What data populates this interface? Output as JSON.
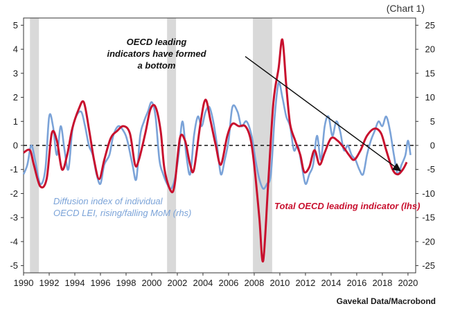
{
  "tag": "(Chart 1)",
  "source": "Gavekal Data/Macrobond",
  "annotations": {
    "bottom": "OECD leading\nindicators have formed\na bottom",
    "diffusion": "Diffusion index of individual\nOECD LEI, rising/falling MoM (rhs)",
    "total": "Total OECD leading indicator (lhs)"
  },
  "colors": {
    "total_line": "#c8102e",
    "diffusion_line": "#7ba3d8",
    "recession_band": "#d9d9d9",
    "arrow": "#111111"
  },
  "chart_data": {
    "type": "line",
    "title": "",
    "xlabel": "",
    "ylabel": "",
    "xlim": [
      1990,
      2020.6
    ],
    "ylim_left": [
      -5.3,
      5.3
    ],
    "ylim_right": [
      -26.5,
      26.5
    ],
    "x_ticks": [
      "1990",
      "1992",
      "1994",
      "1996",
      "1998",
      "2000",
      "2002",
      "2004",
      "2006",
      "2008",
      "2010",
      "2012",
      "2014",
      "2016",
      "2018",
      "2020"
    ],
    "y_left_ticks": [
      "5",
      "4",
      "3",
      "2",
      "1",
      "0",
      "-1",
      "-2",
      "-3",
      "-4",
      "-5"
    ],
    "y_right_ticks": [
      "25",
      "20",
      "15",
      "10",
      "5",
      "0",
      "-5",
      "-10",
      "-15",
      "-20",
      "-25"
    ],
    "zero_line": "dashed",
    "recession_bands": [
      [
        1990.5,
        1991.2
      ],
      [
        2001.2,
        2001.9
      ],
      [
        2007.9,
        2009.4
      ]
    ],
    "series": [
      {
        "name": "Total OECD leading indicator (lhs)",
        "axis": "left",
        "x": [
          1990,
          1990.5,
          1990.8,
          1991.3,
          1991.8,
          1992.2,
          1992.6,
          1993,
          1993.4,
          1993.8,
          1994.3,
          1994.7,
          1995.1,
          1995.5,
          1995.9,
          1996.3,
          1996.8,
          1997.3,
          1997.8,
          1998.3,
          1998.7,
          1999,
          1999.5,
          1999.9,
          2000.3,
          2000.7,
          2001,
          2001.5,
          2001.8,
          2002.2,
          2002.6,
          2003,
          2003.3,
          2003.8,
          2004.2,
          2004.6,
          2005,
          2005.4,
          2005.9,
          2006.3,
          2006.8,
          2007.3,
          2007.7,
          2008,
          2008.4,
          2008.7,
          2009.1,
          2009.5,
          2009.9,
          2010.2,
          2010.5,
          2010.8,
          2011.2,
          2011.6,
          2011.9,
          2012.3,
          2012.7,
          2013.1,
          2013.5,
          2014,
          2014.5,
          2015,
          2015.4,
          2015.8,
          2016.3,
          2016.8,
          2017.4,
          2017.9,
          2018.3,
          2018.8,
          2019.2,
          2019.6,
          2019.9
        ],
        "values": [
          -0.3,
          -0.2,
          -0.8,
          -1.7,
          -1.4,
          0.5,
          0.2,
          -1.0,
          -0.4,
          0.7,
          1.5,
          1.8,
          0.7,
          -0.6,
          -1.4,
          -0.6,
          0.3,
          0.6,
          0.8,
          0.5,
          -0.8,
          -0.6,
          0.5,
          1.5,
          1.6,
          0.6,
          -1.0,
          -1.9,
          -1.6,
          0.3,
          0.2,
          -0.8,
          -1.0,
          0.9,
          1.9,
          1.0,
          0.0,
          -0.8,
          0.4,
          0.9,
          0.8,
          0.8,
          0.3,
          -0.8,
          -3.0,
          -4.8,
          -1.5,
          1.8,
          3.2,
          4.4,
          2.5,
          0.9,
          0.2,
          -0.4,
          -1.1,
          -0.9,
          -0.2,
          -0.8,
          -0.3,
          0.3,
          0.2,
          -0.1,
          -0.4,
          -0.6,
          -0.2,
          0.4,
          0.7,
          0.5,
          -0.2,
          -1.0,
          -1.2,
          -1.0,
          -0.7
        ]
      },
      {
        "name": "Diffusion index of individual OECD LEI, rising/falling MoM (rhs)",
        "axis": "right",
        "x": [
          1990,
          1990.3,
          1990.6,
          1990.9,
          1991.3,
          1991.7,
          1992,
          1992.3,
          1992.6,
          1992.9,
          1993.2,
          1993.5,
          1993.8,
          1994.1,
          1994.5,
          1994.8,
          1995.1,
          1995.4,
          1995.7,
          1996,
          1996.3,
          1996.7,
          1997,
          1997.4,
          1997.8,
          1998.1,
          1998.5,
          1998.8,
          1999.1,
          1999.4,
          1999.7,
          2000,
          2000.3,
          2000.6,
          2000.9,
          2001.2,
          2001.5,
          2001.8,
          2002.1,
          2002.4,
          2002.7,
          2003,
          2003.3,
          2003.6,
          2003.9,
          2004.2,
          2004.5,
          2004.8,
          2005.1,
          2005.4,
          2005.7,
          2006,
          2006.3,
          2006.7,
          2007,
          2007.4,
          2007.8,
          2008.1,
          2008.4,
          2008.7,
          2009,
          2009.3,
          2009.6,
          2009.9,
          2010.2,
          2010.5,
          2010.8,
          2011.1,
          2011.4,
          2011.7,
          2012,
          2012.3,
          2012.6,
          2012.9,
          2013.2,
          2013.5,
          2013.8,
          2014.1,
          2014.4,
          2014.7,
          2015,
          2015.3,
          2015.6,
          2015.9,
          2016.2,
          2016.5,
          2016.8,
          2017.1,
          2017.4,
          2017.7,
          2018,
          2018.3,
          2018.6,
          2018.9,
          2019.2,
          2019.5,
          2019.8,
          2020,
          2020.2
        ],
        "values": [
          -6,
          -4,
          0,
          -3,
          -8,
          -5,
          6,
          4,
          -2,
          4,
          -1,
          -5,
          3,
          6,
          7,
          4,
          0,
          -2,
          -6,
          -8,
          -4,
          -2,
          2,
          4,
          3,
          1,
          -4,
          -7,
          2,
          5,
          7,
          9,
          6,
          -3,
          -6,
          -8,
          -9,
          -7,
          -2,
          5,
          -2,
          -6,
          2,
          6,
          4,
          7,
          8,
          5,
          0,
          -6,
          -3,
          1,
          8,
          7,
          4,
          5,
          2,
          -3,
          -7,
          -9,
          -8,
          -6,
          6,
          13,
          10,
          6,
          4,
          -1,
          0,
          -4,
          -8,
          -6,
          -4,
          2,
          -3,
          4,
          6,
          2,
          5,
          3,
          -1,
          0,
          -2,
          -3,
          -5,
          -6,
          -2,
          1,
          3,
          5,
          4,
          6,
          3,
          -2,
          -6,
          -4,
          -2,
          1,
          -2
        ]
      }
    ],
    "arrow": {
      "from": [
        2007.3,
        3.7
      ],
      "to": [
        2019.4,
        -1.05
      ]
    }
  }
}
